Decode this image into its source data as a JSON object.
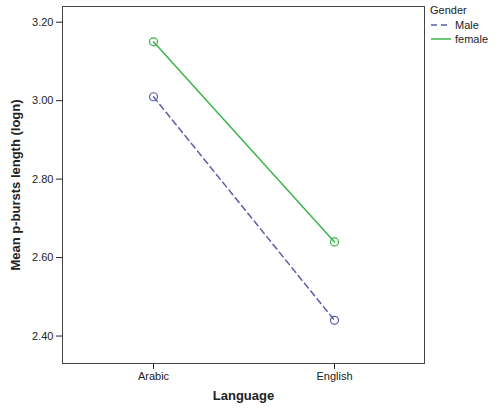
{
  "chart_data": {
    "type": "line",
    "x_label": "Language",
    "y_label": "Mean p-bursts length (logn)",
    "legend_title": "Gender",
    "legend": "right",
    "categories": [
      "Arabic",
      "English"
    ],
    "series": [
      {
        "name": "Male",
        "color": "#5b5ea6",
        "line_style": "dashed",
        "marker": "circle",
        "values": [
          3.01,
          2.44
        ]
      },
      {
        "name": "female",
        "color": "#3bb44a",
        "line_style": "solid",
        "marker": "circle",
        "values": [
          3.15,
          2.64
        ]
      }
    ],
    "ylim": [
      2.33,
      3.24
    ],
    "yticks": [
      {
        "value": 2.4,
        "label": "2.40"
      },
      {
        "value": 2.6,
        "label": "2.60"
      },
      {
        "value": 2.8,
        "label": "2.80"
      },
      {
        "value": 3.0,
        "label": "3.00"
      },
      {
        "value": 3.2,
        "label": "3.20"
      }
    ],
    "grid": false
  }
}
